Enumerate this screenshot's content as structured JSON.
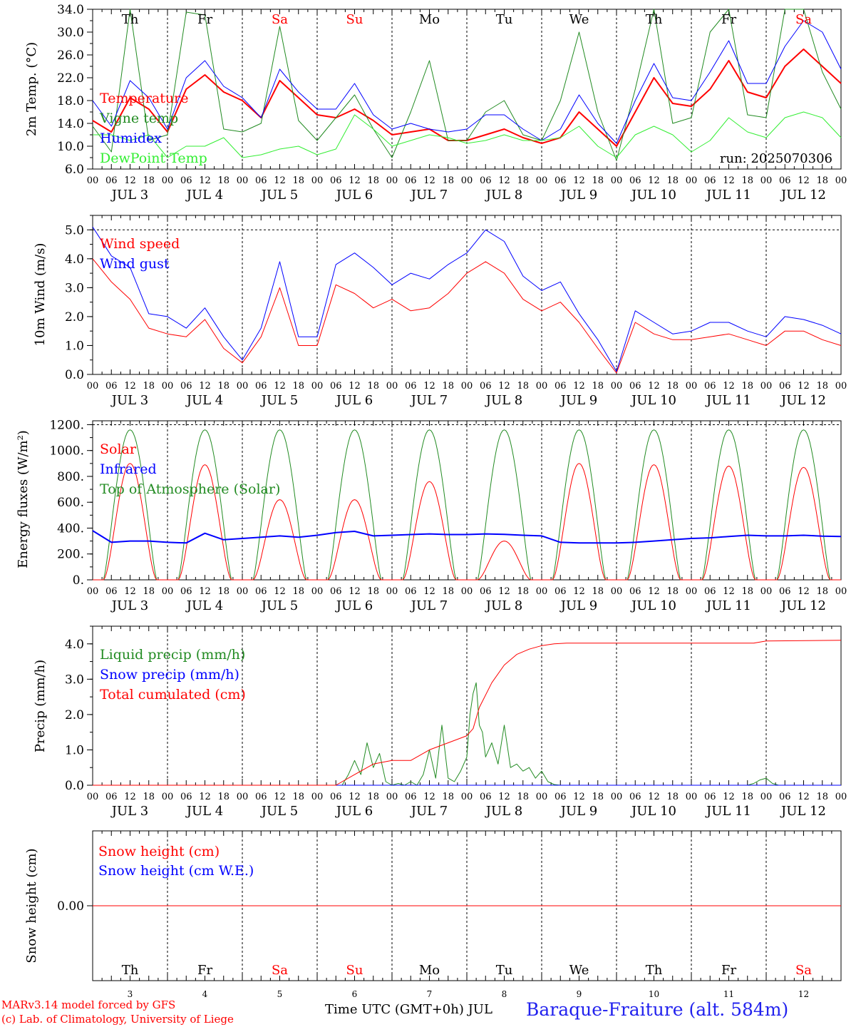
{
  "chart_data": [
    {
      "type": "line",
      "ylabel": "2m Temp. (°C)",
      "ylim": [
        6,
        34
      ],
      "yticks": [
        "34.0",
        "30.0",
        "26.0",
        "22.0",
        "18.0",
        "14.0",
        "10.0",
        "6.0"
      ],
      "legend": [
        "Temperature",
        "Vigne temp",
        "Humidex",
        "DewPoint Temp"
      ],
      "annotation": "run: 2025070306",
      "x": [
        0,
        6,
        12,
        18,
        24,
        30,
        36,
        42,
        48,
        54,
        60,
        66,
        72,
        78,
        84,
        90,
        96,
        102,
        108,
        114,
        120,
        126,
        132,
        138,
        144,
        150,
        156,
        162,
        168,
        174,
        180,
        186,
        192,
        198,
        204,
        210,
        216,
        222,
        228,
        234,
        240
      ],
      "series": [
        {
          "name": "Temperature",
          "color": "#ff0000",
          "width": 2,
          "values": [
            14.5,
            12.5,
            18.5,
            16.5,
            12.5,
            20,
            22.5,
            19.5,
            18,
            15,
            21.5,
            18.5,
            15.5,
            15,
            16.5,
            14.5,
            12,
            12.5,
            13,
            11,
            11,
            12,
            13,
            11.5,
            10.5,
            11.5,
            16,
            13,
            10,
            16,
            22,
            17.5,
            17,
            20,
            25,
            19.5,
            18.5,
            24,
            27,
            24,
            21
          ]
        },
        {
          "name": "Vigne temp",
          "color": "#228b22",
          "width": 1,
          "values": [
            13.5,
            9,
            34,
            11,
            12,
            33.5,
            33,
            13,
            12.5,
            14,
            31,
            14.5,
            11,
            15,
            19,
            13,
            8,
            16,
            25,
            11,
            11,
            16,
            18,
            12,
            11,
            18,
            30,
            16,
            7.5,
            20,
            34,
            14,
            15,
            30,
            34,
            15.5,
            15,
            34,
            34,
            23,
            16.5
          ]
        },
        {
          "name": "Humidex",
          "color": "#0000ff",
          "width": 1,
          "values": [
            18,
            13.5,
            21.5,
            18.5,
            13,
            22,
            25,
            20.5,
            18.5,
            15,
            23.5,
            19.5,
            16.5,
            16.5,
            21,
            15.5,
            13,
            14,
            13,
            12.5,
            13,
            15.5,
            15.5,
            13,
            11,
            13,
            19,
            14,
            10.5,
            18,
            24.5,
            18.5,
            18,
            23,
            28.5,
            21,
            21,
            27.5,
            32,
            30,
            23.5
          ]
        },
        {
          "name": "DewPoint Temp",
          "color": "#33ee33",
          "width": 1,
          "values": [
            12,
            12,
            11,
            12,
            8,
            10,
            10,
            11.5,
            8,
            8.5,
            9.5,
            10,
            8.5,
            9.5,
            15.5,
            13,
            10,
            11,
            12,
            11.5,
            10.5,
            11,
            12,
            11,
            11,
            11.5,
            13.5,
            10,
            8,
            12,
            13.5,
            12,
            9,
            11,
            15,
            12.5,
            11.5,
            15,
            16,
            15,
            11.5
          ]
        }
      ]
    },
    {
      "type": "line",
      "ylabel": "10m Wind (m/s)",
      "ylim": [
        0,
        5.5
      ],
      "yticks": [
        "5.0",
        "4.0",
        "3.0",
        "2.0",
        "1.0",
        "0.0"
      ],
      "legend": [
        "Wind speed",
        "Wind gust"
      ],
      "x": [
        0,
        6,
        12,
        18,
        24,
        30,
        36,
        42,
        48,
        54,
        60,
        66,
        72,
        78,
        84,
        90,
        96,
        102,
        108,
        114,
        120,
        126,
        132,
        138,
        144,
        150,
        156,
        162,
        168,
        174,
        180,
        186,
        192,
        198,
        204,
        210,
        216,
        222,
        228,
        234,
        240
      ],
      "series": [
        {
          "name": "Wind speed",
          "color": "#ff0000",
          "width": 1,
          "values": [
            4,
            3.2,
            2.6,
            1.6,
            1.4,
            1.3,
            1.9,
            0.9,
            0.4,
            1.3,
            3,
            1,
            1,
            3.1,
            2.8,
            2.3,
            2.6,
            2.2,
            2.3,
            2.8,
            3.5,
            3.9,
            3.5,
            2.6,
            2.2,
            2.5,
            1.8,
            0.9,
            0.05,
            1.8,
            1.4,
            1.2,
            1.2,
            1.3,
            1.4,
            1.2,
            1,
            1.5,
            1.5,
            1.2,
            1
          ]
        },
        {
          "name": "Wind gust",
          "color": "#0000ff",
          "width": 1,
          "values": [
            5.1,
            4.1,
            3.7,
            2.1,
            2.0,
            1.6,
            2.3,
            1.3,
            0.5,
            1.6,
            3.9,
            1.3,
            1.3,
            3.8,
            4.2,
            3.7,
            3.1,
            3.5,
            3.3,
            3.8,
            4.2,
            5.0,
            4.6,
            3.4,
            2.9,
            3.2,
            2.1,
            1.2,
            0.1,
            2.2,
            1.8,
            1.4,
            1.5,
            1.8,
            1.8,
            1.5,
            1.3,
            2.0,
            1.9,
            1.7,
            1.4
          ]
        }
      ]
    },
    {
      "type": "line",
      "ylabel": "Energy fluxes (W/m²)",
      "ylim": [
        0,
        1230
      ],
      "yticks": [
        "1200.",
        "1000.",
        "800.",
        "600.",
        "400.",
        "200.",
        "0."
      ],
      "legend": [
        "Solar",
        "Infrared",
        "Top of Atmosphere (Solar)"
      ],
      "toa_peak": 1160,
      "solar_peaks": [
        900,
        890,
        620,
        620,
        760,
        300,
        900,
        890,
        880,
        870
      ],
      "series": [
        {
          "name": "Solar",
          "color": "#ff0000",
          "width": 1
        },
        {
          "name": "Infrared",
          "color": "#0000ff",
          "width": 2,
          "x": [
            0,
            6,
            12,
            18,
            24,
            30,
            36,
            42,
            48,
            54,
            60,
            66,
            72,
            78,
            84,
            90,
            96,
            102,
            108,
            114,
            120,
            126,
            132,
            138,
            144,
            150,
            156,
            162,
            168,
            174,
            180,
            186,
            192,
            198,
            204,
            210,
            216,
            222,
            228,
            234,
            240
          ],
          "values": [
            380,
            290,
            300,
            300,
            290,
            285,
            360,
            310,
            320,
            330,
            340,
            330,
            345,
            365,
            375,
            340,
            345,
            350,
            355,
            350,
            350,
            355,
            352,
            345,
            340,
            290,
            285,
            285,
            285,
            290,
            300,
            310,
            320,
            325,
            335,
            345,
            340,
            340,
            345,
            338,
            335
          ]
        },
        {
          "name": "Top of Atmosphere (Solar)",
          "color": "#228b22",
          "width": 1
        }
      ]
    },
    {
      "type": "line",
      "ylabel": "Precip (mm/h)",
      "ylim": [
        0,
        4.5
      ],
      "yticks": [
        "4.0",
        "3.0",
        "2.0",
        "1.0",
        "0.0"
      ],
      "legend": [
        "Liquid precip (mm/h)",
        "Snow precip (mm/h)",
        "Total cumulated (cm)"
      ],
      "series": [
        {
          "name": "Liquid precip (mm/h)",
          "color": "#228b22",
          "width": 1,
          "x": [
            0,
            80,
            82,
            84,
            86,
            88,
            90,
            92,
            94,
            96,
            98,
            100,
            102,
            104,
            106,
            108,
            110,
            112,
            114,
            116,
            118,
            120,
            121,
            122,
            123,
            124,
            125,
            126,
            128,
            130,
            132,
            134,
            136,
            138,
            140,
            142,
            144,
            146,
            148,
            150,
            152,
            200,
            210,
            212,
            214,
            216,
            218,
            220,
            240
          ],
          "values": [
            0,
            0,
            0.3,
            0.7,
            0.3,
            1.2,
            0.5,
            0.9,
            0.1,
            0,
            0.05,
            0,
            0.1,
            0,
            0.3,
            1.0,
            0.2,
            1.7,
            0.2,
            0.1,
            0.4,
            0.8,
            2.0,
            2.6,
            2.9,
            1.7,
            1.5,
            0.8,
            1.2,
            0.6,
            1.7,
            0.5,
            0.6,
            0.4,
            0.5,
            0.2,
            0.4,
            0.1,
            0.02,
            0,
            0,
            0,
            0,
            0.05,
            0.15,
            0.2,
            0.05,
            0,
            0
          ]
        },
        {
          "name": "Snow precip (mm/h)",
          "color": "#0000ff",
          "width": 1,
          "x": [
            0,
            240
          ],
          "values": [
            0,
            0
          ]
        },
        {
          "name": "Total cumulated (cm)",
          "color": "#ff0000",
          "width": 1,
          "x": [
            0,
            78,
            84,
            90,
            96,
            102,
            108,
            114,
            120,
            122,
            124,
            128,
            132,
            136,
            140,
            144,
            148,
            152,
            200,
            212,
            216,
            240
          ],
          "values": [
            0,
            0,
            0.3,
            0.6,
            0.7,
            0.7,
            1.0,
            1.2,
            1.4,
            1.6,
            2.2,
            2.9,
            3.4,
            3.7,
            3.85,
            3.95,
            4.0,
            4.02,
            4.02,
            4.02,
            4.08,
            4.1
          ]
        }
      ]
    },
    {
      "type": "line",
      "ylabel": "Snow height (cm)",
      "yticks": [
        "0.00"
      ],
      "legend": [
        "Snow height (cm)",
        "Snow height (cm W.E.)"
      ],
      "series": [
        {
          "name": "Snow height (cm)",
          "color": "#ff0000",
          "width": 1,
          "x": [
            0,
            240
          ],
          "values": [
            0,
            0
          ]
        },
        {
          "name": "Snow height (cm W.E.)",
          "color": "#0000ff",
          "width": 1,
          "x": [
            0,
            240
          ],
          "values": [
            0,
            0
          ]
        }
      ]
    }
  ],
  "x_axis": {
    "hour_ticks": [
      "00",
      "06",
      "12",
      "18"
    ],
    "days": [
      "JUL 3",
      "JUL 4",
      "JUL 5",
      "JUL 6",
      "JUL 7",
      "JUL 8",
      "JUL 9",
      "JUL 10",
      "JUL 11",
      "JUL 12"
    ],
    "weekdays": [
      "Th",
      "Fr",
      "Sa",
      "Su",
      "Mo",
      "Tu",
      "We",
      "Th",
      "Fr",
      "Sa"
    ],
    "weekday_colors": [
      "#000000",
      "#000000",
      "#ff0000",
      "#ff0000",
      "#000000",
      "#000000",
      "#000000",
      "#000000",
      "#000000",
      "#ff0000"
    ],
    "day_numbers": [
      "3",
      "4",
      "5",
      "6",
      "7",
      "8",
      "9",
      "10",
      "11",
      "12"
    ],
    "xlabel": "Time UTC (GMT+0h) JUL"
  },
  "footer": {
    "credit_line1": "MARv3.14 model forced by GFS",
    "credit_line2": "(c) Lab. of Climatology, University of Liege",
    "station": "Baraque-Fraiture (alt. 584m)"
  }
}
